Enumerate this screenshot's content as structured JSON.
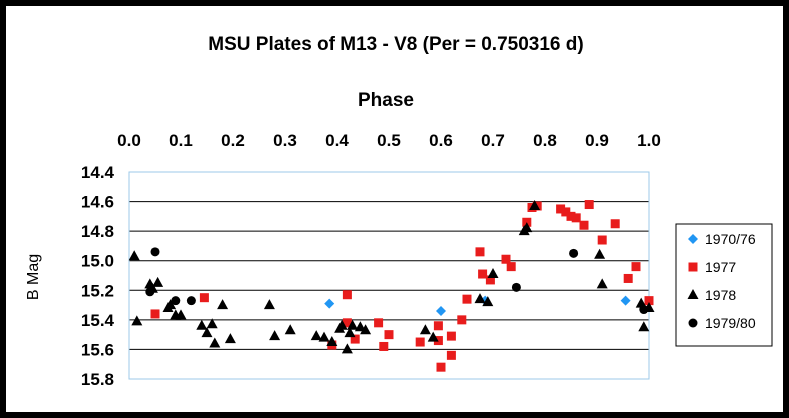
{
  "chart_data": {
    "type": "scatter",
    "title": "MSU Plates of M13 - V8  (Per = 0.750316 d)",
    "xlabel": "Phase",
    "ylabel": "B Mag",
    "xlim": [
      0.0,
      1.0
    ],
    "ylim": [
      14.4,
      15.8
    ],
    "y_inverted": true,
    "x_axis_position": "top",
    "x_ticks": [
      "0.0",
      "0.1",
      "0.2",
      "0.3",
      "0.4",
      "0.5",
      "0.6",
      "0.7",
      "0.8",
      "0.9",
      "1.0"
    ],
    "y_ticks": [
      "14.4",
      "14.6",
      "14.8",
      "15.0",
      "15.2",
      "15.4",
      "15.6",
      "15.8"
    ],
    "grid": "horizontal",
    "legend_position": "right",
    "series": [
      {
        "name": "1970/76",
        "marker": "diamond",
        "color": "#2196f3",
        "points": [
          [
            0.385,
            15.29
          ],
          [
            0.6,
            15.34
          ],
          [
            0.685,
            15.27
          ],
          [
            0.955,
            15.27
          ]
        ]
      },
      {
        "name": "1977",
        "marker": "square",
        "color": "#e81c1c",
        "points": [
          [
            0.05,
            15.36
          ],
          [
            0.145,
            15.25
          ],
          [
            0.39,
            15.57
          ],
          [
            0.42,
            15.23
          ],
          [
            0.42,
            15.42
          ],
          [
            0.435,
            15.53
          ],
          [
            0.48,
            15.42
          ],
          [
            0.49,
            15.58
          ],
          [
            0.5,
            15.5
          ],
          [
            0.56,
            15.55
          ],
          [
            0.595,
            15.44
          ],
          [
            0.595,
            15.54
          ],
          [
            0.6,
            15.72
          ],
          [
            0.62,
            15.64
          ],
          [
            0.62,
            15.51
          ],
          [
            0.64,
            15.4
          ],
          [
            0.65,
            15.26
          ],
          [
            0.675,
            14.94
          ],
          [
            0.68,
            15.09
          ],
          [
            0.695,
            15.13
          ],
          [
            0.725,
            14.99
          ],
          [
            0.735,
            15.04
          ],
          [
            0.765,
            14.74
          ],
          [
            0.775,
            14.64
          ],
          [
            0.785,
            14.63
          ],
          [
            0.83,
            14.65
          ],
          [
            0.84,
            14.67
          ],
          [
            0.85,
            14.7
          ],
          [
            0.86,
            14.71
          ],
          [
            0.875,
            14.76
          ],
          [
            0.885,
            14.62
          ],
          [
            0.91,
            14.86
          ],
          [
            0.935,
            14.75
          ],
          [
            0.96,
            15.12
          ],
          [
            0.975,
            15.04
          ],
          [
            1.0,
            15.27
          ]
        ]
      },
      {
        "name": "1978",
        "marker": "triangle",
        "color": "#000000",
        "points": [
          [
            0.01,
            14.97
          ],
          [
            0.015,
            15.41
          ],
          [
            0.04,
            15.16
          ],
          [
            0.045,
            15.19
          ],
          [
            0.055,
            15.15
          ],
          [
            0.075,
            15.32
          ],
          [
            0.08,
            15.3
          ],
          [
            0.09,
            15.37
          ],
          [
            0.1,
            15.37
          ],
          [
            0.14,
            15.44
          ],
          [
            0.15,
            15.49
          ],
          [
            0.16,
            15.43
          ],
          [
            0.165,
            15.56
          ],
          [
            0.18,
            15.3
          ],
          [
            0.195,
            15.53
          ],
          [
            0.27,
            15.3
          ],
          [
            0.28,
            15.51
          ],
          [
            0.31,
            15.47
          ],
          [
            0.36,
            15.51
          ],
          [
            0.375,
            15.52
          ],
          [
            0.39,
            15.55
          ],
          [
            0.405,
            15.46
          ],
          [
            0.41,
            15.44
          ],
          [
            0.42,
            15.6
          ],
          [
            0.425,
            15.49
          ],
          [
            0.43,
            15.44
          ],
          [
            0.445,
            15.45
          ],
          [
            0.455,
            15.47
          ],
          [
            0.57,
            15.47
          ],
          [
            0.585,
            15.52
          ],
          [
            0.675,
            15.26
          ],
          [
            0.69,
            15.28
          ],
          [
            0.7,
            15.09
          ],
          [
            0.76,
            14.8
          ],
          [
            0.765,
            14.78
          ],
          [
            0.78,
            14.63
          ],
          [
            0.905,
            14.96
          ],
          [
            0.91,
            15.16
          ],
          [
            0.985,
            15.29
          ],
          [
            0.99,
            15.45
          ],
          [
            1.0,
            15.32
          ]
        ]
      },
      {
        "name": "1979/80",
        "marker": "circle",
        "color": "#000000",
        "points": [
          [
            0.04,
            15.21
          ],
          [
            0.05,
            14.94
          ],
          [
            0.09,
            15.27
          ],
          [
            0.12,
            15.27
          ],
          [
            0.745,
            15.18
          ],
          [
            0.855,
            14.95
          ],
          [
            0.99,
            15.33
          ]
        ]
      }
    ]
  }
}
